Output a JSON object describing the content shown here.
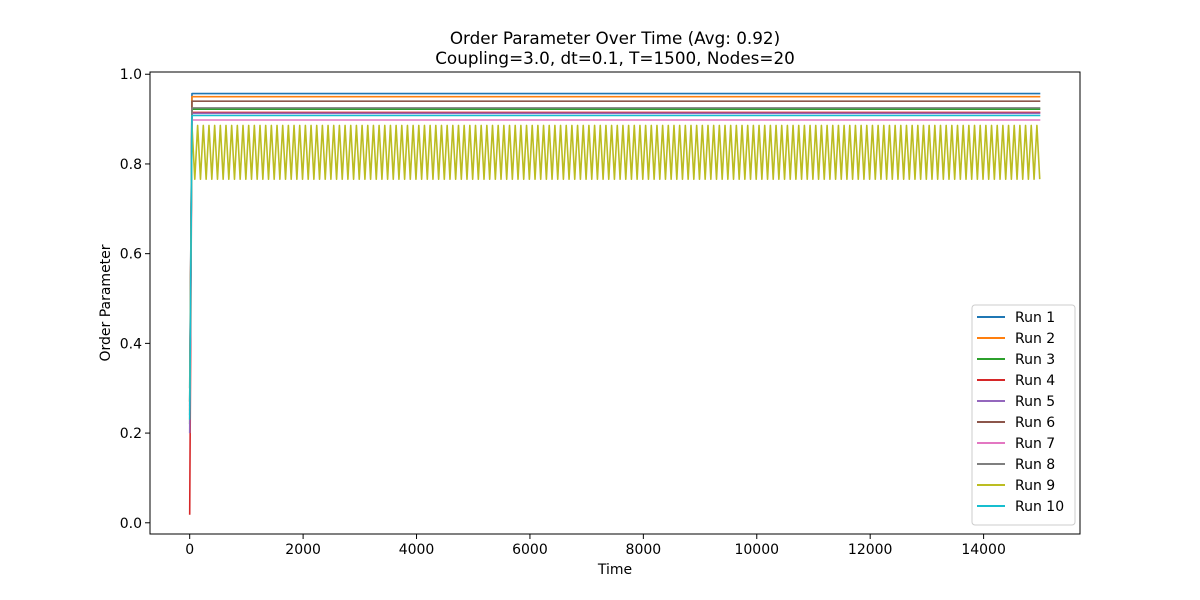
{
  "chart_data": {
    "type": "line",
    "title": "Order Parameter Over Time (Avg: 0.92)",
    "subtitle": "Coupling=3.0, dt=0.1, T=1500, Nodes=20",
    "xlabel": "Time",
    "ylabel": "Order Parameter",
    "xlim": [
      -700,
      15700
    ],
    "ylim": [
      -0.025,
      1.005
    ],
    "xticks": [
      0,
      2000,
      4000,
      6000,
      8000,
      10000,
      12000,
      14000
    ],
    "xtick_labels": [
      "0",
      "2000",
      "4000",
      "6000",
      "8000",
      "10000",
      "12000",
      "14000"
    ],
    "yticks": [
      0.0,
      0.2,
      0.4,
      0.6,
      0.8,
      1.0
    ],
    "ytick_labels": [
      "0.0",
      "0.2",
      "0.4",
      "0.6",
      "0.8",
      "1.0"
    ],
    "grid": false,
    "legend_position": "lower-right",
    "series": [
      {
        "name": "Run 1",
        "color": "#1f77b4",
        "start": 0.27,
        "steady": 0.957,
        "osc_amp": 0
      },
      {
        "name": "Run 2",
        "color": "#ff7f0e",
        "start": 0.25,
        "steady": 0.95,
        "osc_amp": 0
      },
      {
        "name": "Run 3",
        "color": "#2ca02c",
        "start": 0.22,
        "steady": 0.922,
        "osc_amp": 0
      },
      {
        "name": "Run 4",
        "color": "#d62728",
        "start": 0.018,
        "steady": 0.915,
        "osc_amp": 0
      },
      {
        "name": "Run 5",
        "color": "#9467bd",
        "start": 0.2,
        "steady": 0.913,
        "osc_amp": 0
      },
      {
        "name": "Run 6",
        "color": "#8c564b",
        "start": 0.3,
        "steady": 0.94,
        "osc_amp": 0
      },
      {
        "name": "Run 7",
        "color": "#e377c2",
        "start": 0.26,
        "steady": 0.898,
        "osc_amp": 0
      },
      {
        "name": "Run 8",
        "color": "#7f7f7f",
        "start": 0.24,
        "steady": 0.925,
        "osc_amp": 0
      },
      {
        "name": "Run 9",
        "color": "#bcbd22",
        "start": 0.27,
        "steady": 0.826,
        "osc_amp": 0.06,
        "osc_period": 100
      },
      {
        "name": "Run 10",
        "color": "#17becf",
        "start": 0.23,
        "steady": 0.908,
        "osc_amp": 0
      }
    ],
    "x_end": 15000
  }
}
